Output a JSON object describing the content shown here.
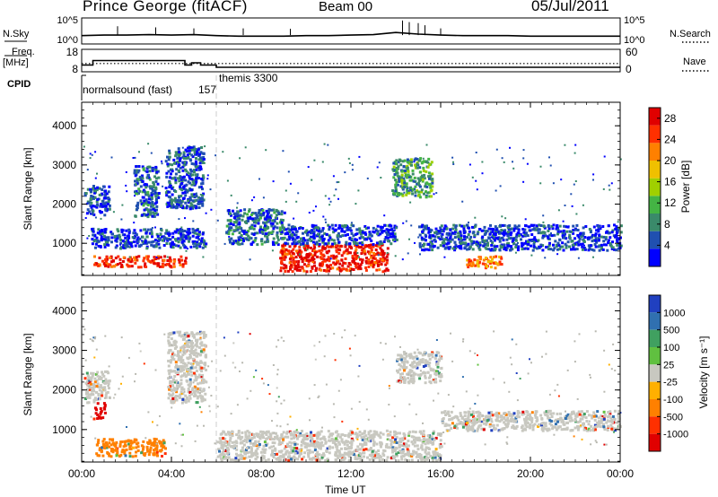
{
  "header": {
    "station": "Prince George (fitACF)",
    "beam": "Beam 00",
    "date": "05/Jul/2011"
  },
  "labels": {
    "n_sky": "N.Sky",
    "n_search": "N.Search",
    "freq_line1": "Freq.",
    "freq_line2": "[MHz]",
    "nave": "Nave",
    "cpid": "CPID",
    "normalsound": "normalsound (fast)",
    "normalsound_id": "157",
    "themis": "themis 3300",
    "slant_range": "Slant Range [km]",
    "power_title": "Power [dB]",
    "velocity_title": "Velocity [m s⁻¹]",
    "time_ut": "Time UT"
  },
  "colors": {
    "power_scale": [
      "#0000ff",
      "#2050b0",
      "#3a8a6a",
      "#44b444",
      "#a0d000",
      "#f0c000",
      "#ff8000",
      "#ff3000",
      "#e00000"
    ],
    "velocity_scale": [
      "#2040c0",
      "#3070b0",
      "#40a060",
      "#60c040",
      "#c8c8c0",
      "#ffb000",
      "#ff8000",
      "#ff3000",
      "#e00000"
    ],
    "ground_scatter": "#b8b8b0"
  },
  "chart_data": [
    {
      "type": "line",
      "panel": "noise",
      "series": [
        {
          "name": "N.Sky",
          "x": [
            0,
            1,
            2,
            3,
            4,
            5,
            6,
            7,
            8,
            9,
            10,
            11,
            12,
            13,
            14,
            15,
            16,
            17,
            18,
            19,
            20,
            21,
            22,
            23,
            24
          ],
          "values": [
            1.6,
            1.7,
            1.7,
            1.8,
            1.7,
            1.8,
            1.6,
            1.5,
            1.5,
            1.5,
            1.6,
            1.6,
            1.7,
            1.8,
            2.2,
            1.9,
            1.7,
            1.6,
            1.6,
            1.6,
            1.5,
            1.5,
            1.5,
            1.5,
            1.5
          ]
        }
      ],
      "y_ticks_left": [
        "10^5",
        "10^0"
      ],
      "y_ticks_right": [
        "10^5",
        "10^0"
      ],
      "xlim": [
        0,
        24
      ]
    },
    {
      "type": "line",
      "panel": "frequency",
      "series": [
        {
          "name": "Freq.",
          "x": [
            0,
            0.5,
            0.5,
            4.6,
            4.6,
            4.9,
            4.9,
            5.3,
            5.3,
            6,
            6,
            24
          ],
          "values": [
            11,
            11,
            13,
            13,
            11,
            11,
            12,
            12,
            11,
            11,
            10,
            10
          ]
        },
        {
          "name": "Nave",
          "x": [
            0,
            24
          ],
          "values": [
            22,
            22
          ]
        }
      ],
      "y_ticks_left": [
        "18",
        "8"
      ],
      "y_ticks_right": [
        "60",
        "0"
      ],
      "xlim": [
        0,
        24
      ]
    },
    {
      "type": "heatmap",
      "panel": "power",
      "xlabel": "",
      "ylabel": "Slant Range [km]",
      "xlim": [
        0,
        24
      ],
      "ylim": [
        180,
        4600
      ],
      "y_ticks": [
        1000,
        2000,
        3000,
        4000
      ],
      "colorbar_ticks": [
        4,
        8,
        12,
        16,
        20,
        24,
        28
      ],
      "colorbar_range": [
        0,
        30
      ],
      "regions": [
        {
          "t": [
            0.1,
            1.2
          ],
          "r": [
            1750,
            2500
          ],
          "level": 4
        },
        {
          "t": [
            0.4,
            5.5
          ],
          "r": [
            900,
            1400
          ],
          "level": 4
        },
        {
          "t": [
            0.5,
            4.6
          ],
          "r": [
            420,
            700
          ],
          "level": 26
        },
        {
          "t": [
            2.3,
            3.4
          ],
          "r": [
            1700,
            3000
          ],
          "level": 6
        },
        {
          "t": [
            3.7,
            5.4
          ],
          "r": [
            1900,
            3500
          ],
          "level": 5
        },
        {
          "t": [
            6.4,
            9.0
          ],
          "r": [
            1000,
            1900
          ],
          "level": 6
        },
        {
          "t": [
            8.8,
            13.6
          ],
          "r": [
            300,
            1000
          ],
          "level": 27
        },
        {
          "t": [
            9.0,
            14.0
          ],
          "r": [
            1000,
            1500
          ],
          "level": 4
        },
        {
          "t": [
            13.8,
            15.6
          ],
          "r": [
            2200,
            3200
          ],
          "level": 10
        },
        {
          "t": [
            15.0,
            24.0
          ],
          "r": [
            850,
            1500
          ],
          "level": 4
        },
        {
          "t": [
            17.1,
            18.7
          ],
          "r": [
            400,
            700
          ],
          "level": 22
        }
      ]
    },
    {
      "type": "heatmap",
      "panel": "velocity",
      "xlabel": "Time UT",
      "ylabel": "Slant Range [km]",
      "xlim": [
        0,
        24
      ],
      "ylim": [
        180,
        4600
      ],
      "x_ticks": [
        "00:00",
        "04:00",
        "08:00",
        "12:00",
        "16:00",
        "20:00",
        "00:00"
      ],
      "y_ticks": [
        1000,
        2000,
        3000,
        4000
      ],
      "colorbar_ticks": [
        "1000",
        "500",
        "100",
        "25",
        "-25",
        "-100",
        "-500",
        "-1000"
      ],
      "regions": [
        {
          "t": [
            0.1,
            1.2
          ],
          "r": [
            1700,
            2500
          ],
          "value": 0
        },
        {
          "t": [
            0.5,
            1.0
          ],
          "r": [
            1300,
            1700
          ],
          "value": -900
        },
        {
          "t": [
            0.6,
            3.7
          ],
          "r": [
            350,
            800
          ],
          "value": -150
        },
        {
          "t": [
            3.8,
            5.5
          ],
          "r": [
            1700,
            3500
          ],
          "value": 0
        },
        {
          "t": [
            6.0,
            16.0
          ],
          "r": [
            250,
            1000
          ],
          "value": 0
        },
        {
          "t": [
            14.0,
            16.0
          ],
          "r": [
            2200,
            3000
          ],
          "value": 0
        },
        {
          "t": [
            16.0,
            24.0
          ],
          "r": [
            1000,
            1500
          ],
          "value": 0
        }
      ]
    }
  ]
}
